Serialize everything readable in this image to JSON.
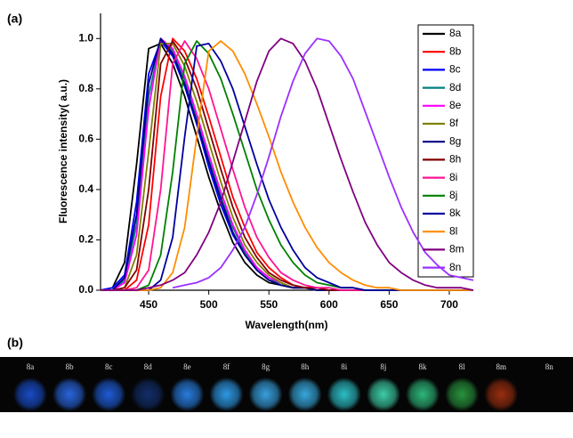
{
  "chart_data": {
    "type": "line",
    "panel_label": "(a)",
    "x_label": "Wavelength(nm)",
    "y_label": "Fluorescence intensity( a.u.)",
    "x": [
      410,
      420,
      430,
      440,
      450,
      460,
      470,
      480,
      490,
      500,
      510,
      520,
      530,
      540,
      550,
      560,
      570,
      580,
      590,
      600,
      610,
      620,
      630,
      640,
      650,
      660,
      670,
      680,
      690,
      700,
      710,
      720
    ],
    "xlim": [
      410,
      720
    ],
    "xticks": [
      450,
      500,
      550,
      600,
      650,
      700
    ],
    "ylim": [
      0,
      1.1
    ],
    "yticks": [
      {
        "value": 0,
        "label": "0.0"
      },
      0.2,
      0.4,
      0.6,
      0.8,
      {
        "value": 1,
        "label": "1.0"
      }
    ],
    "grid": false,
    "legend": "upper right",
    "series": [
      {
        "name": "8a",
        "color": "#000000",
        "values": [
          0,
          0.01,
          0.11,
          0.5,
          0.96,
          0.98,
          0.9,
          0.77,
          0.61,
          0.45,
          0.31,
          0.19,
          0.11,
          0.06,
          0.03,
          0.02,
          0.01,
          0.01,
          0,
          0,
          0,
          0,
          0,
          0,
          0,
          0,
          0,
          0,
          0,
          0,
          0,
          0
        ]
      },
      {
        "name": "8b",
        "color": "#ff0000",
        "values": [
          0,
          0,
          0,
          0.04,
          0.26,
          0.77,
          1,
          0.95,
          0.84,
          0.69,
          0.53,
          0.37,
          0.25,
          0.15,
          0.09,
          0.05,
          0.02,
          0.01,
          0.01,
          0,
          0,
          0,
          0,
          0,
          0,
          0,
          0,
          0,
          0,
          0,
          0,
          0
        ]
      },
      {
        "name": "8c",
        "color": "#0000ff",
        "values": [
          0,
          0.01,
          0.06,
          0.35,
          0.86,
          0.99,
          0.93,
          0.81,
          0.66,
          0.49,
          0.34,
          0.22,
          0.14,
          0.08,
          0.04,
          0.02,
          0.01,
          0.01,
          0,
          0,
          0,
          0,
          0,
          0,
          0,
          0,
          0,
          0,
          0,
          0,
          0,
          0
        ]
      },
      {
        "name": "8d",
        "color": "#008080",
        "values": [
          0,
          0,
          0.04,
          0.26,
          0.77,
          1,
          0.95,
          0.84,
          0.69,
          0.53,
          0.37,
          0.25,
          0.15,
          0.09,
          0.05,
          0.02,
          0.01,
          0.01,
          0,
          0,
          0,
          0,
          0,
          0,
          0,
          0,
          0,
          0,
          0,
          0,
          0,
          0
        ]
      },
      {
        "name": "8e",
        "color": "#ff00ff",
        "values": [
          0,
          0,
          0.03,
          0.22,
          0.72,
          1,
          0.96,
          0.85,
          0.7,
          0.54,
          0.39,
          0.26,
          0.16,
          0.09,
          0.05,
          0.03,
          0.01,
          0.01,
          0,
          0,
          0,
          0,
          0,
          0,
          0,
          0,
          0,
          0,
          0,
          0,
          0,
          0
        ]
      },
      {
        "name": "8f",
        "color": "#808000",
        "values": [
          0,
          0,
          0.01,
          0.14,
          0.55,
          0.98,
          0.98,
          0.89,
          0.75,
          0.59,
          0.43,
          0.29,
          0.18,
          0.11,
          0.06,
          0.03,
          0.01,
          0.01,
          0,
          0,
          0,
          0,
          0,
          0,
          0,
          0,
          0,
          0,
          0,
          0,
          0,
          0
        ]
      },
      {
        "name": "8g",
        "color": "#000080",
        "values": [
          0,
          0,
          0.05,
          0.3,
          0.82,
          1,
          0.94,
          0.82,
          0.67,
          0.51,
          0.36,
          0.23,
          0.14,
          0.08,
          0.04,
          0.02,
          0.01,
          0.01,
          0,
          0,
          0,
          0,
          0,
          0,
          0,
          0,
          0,
          0,
          0,
          0,
          0,
          0
        ]
      },
      {
        "name": "8h",
        "color": "#800000",
        "values": [
          0,
          0,
          0.01,
          0.08,
          0.4,
          0.9,
          0.99,
          0.92,
          0.8,
          0.64,
          0.48,
          0.33,
          0.21,
          0.13,
          0.07,
          0.04,
          0.02,
          0.01,
          0.01,
          0,
          0,
          0,
          0,
          0,
          0,
          0,
          0,
          0,
          0,
          0,
          0,
          0
        ]
      },
      {
        "name": "8i",
        "color": "#ff1493",
        "values": [
          0,
          0,
          0,
          0.01,
          0.08,
          0.4,
          0.9,
          0.99,
          0.92,
          0.8,
          0.64,
          0.48,
          0.33,
          0.21,
          0.13,
          0.07,
          0.04,
          0.02,
          0.01,
          0.01,
          0,
          0,
          0,
          0,
          0,
          0,
          0,
          0,
          0,
          0,
          0,
          0
        ]
      },
      {
        "name": "8j",
        "color": "#008000",
        "values": [
          0,
          0,
          0,
          0,
          0.02,
          0.14,
          0.47,
          0.9,
          0.99,
          0.94,
          0.84,
          0.7,
          0.55,
          0.4,
          0.28,
          0.18,
          0.11,
          0.06,
          0.03,
          0.02,
          0.01,
          0.01,
          0,
          0,
          0,
          0,
          0,
          0,
          0,
          0,
          0,
          0
        ]
      },
      {
        "name": "8k",
        "color": "#0000a0",
        "values": [
          0,
          0,
          0,
          0,
          0,
          0.04,
          0.21,
          0.61,
          0.97,
          0.98,
          0.91,
          0.8,
          0.65,
          0.5,
          0.36,
          0.25,
          0.16,
          0.09,
          0.05,
          0.03,
          0.01,
          0.01,
          0,
          0,
          0,
          0,
          0,
          0,
          0,
          0,
          0,
          0
        ]
      },
      {
        "name": "8l",
        "color": "#ff8c00",
        "values": [
          0,
          0,
          0,
          0,
          0,
          0.01,
          0.07,
          0.25,
          0.61,
          0.95,
          0.99,
          0.95,
          0.86,
          0.74,
          0.61,
          0.47,
          0.35,
          0.25,
          0.17,
          0.11,
          0.07,
          0.04,
          0.02,
          0.01,
          0.01,
          0,
          0,
          0,
          0,
          0,
          0,
          0
        ]
      },
      {
        "name": "8m",
        "color": "#800080",
        "values": [
          0,
          0,
          0,
          0,
          0.01,
          0.02,
          0.04,
          0.07,
          0.14,
          0.23,
          0.35,
          0.51,
          0.67,
          0.83,
          0.95,
          1,
          0.98,
          0.91,
          0.8,
          0.66,
          0.52,
          0.39,
          0.27,
          0.18,
          0.11,
          0.07,
          0.04,
          0.02,
          0.01,
          0.01,
          0.01,
          0
        ]
      },
      {
        "name": "8n",
        "color": "#9b30ff",
        "values": [
          null,
          null,
          null,
          null,
          null,
          null,
          0.01,
          0.02,
          0.03,
          0.05,
          0.09,
          0.16,
          0.25,
          0.38,
          0.53,
          0.69,
          0.83,
          0.94,
          1,
          0.99,
          0.93,
          0.84,
          0.71,
          0.58,
          0.45,
          0.33,
          0.23,
          0.15,
          0.1,
          0.06,
          0.05,
          0.04
        ]
      }
    ]
  },
  "photo": {
    "panel_label": "(b)",
    "labels": [
      "8a",
      "8b",
      "8c",
      "8d",
      "8e",
      "8f",
      "8g",
      "8h",
      "8i",
      "8j",
      "8k",
      "8l",
      "8m",
      "8n"
    ]
  }
}
